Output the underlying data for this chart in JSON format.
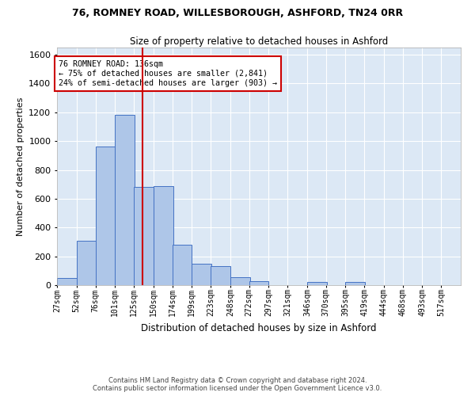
{
  "title_line1": "76, ROMNEY ROAD, WILLESBOROUGH, ASHFORD, TN24 0RR",
  "title_line2": "Size of property relative to detached houses in Ashford",
  "xlabel": "Distribution of detached houses by size in Ashford",
  "ylabel": "Number of detached properties",
  "footer_line1": "Contains HM Land Registry data © Crown copyright and database right 2024.",
  "footer_line2": "Contains public sector information licensed under the Open Government Licence v3.0.",
  "annotation_line1": "76 ROMNEY ROAD: 136sqm",
  "annotation_line2": "← 75% of detached houses are smaller (2,841)",
  "annotation_line3": "24% of semi-detached houses are larger (903) →",
  "bin_labels": [
    "27sqm",
    "52sqm",
    "76sqm",
    "101sqm",
    "125sqm",
    "150sqm",
    "174sqm",
    "199sqm",
    "223sqm",
    "248sqm",
    "272sqm",
    "297sqm",
    "321sqm",
    "346sqm",
    "370sqm",
    "395sqm",
    "419sqm",
    "444sqm",
    "468sqm",
    "493sqm",
    "517sqm"
  ],
  "bin_edges": [
    27,
    52,
    76,
    101,
    125,
    150,
    174,
    199,
    223,
    248,
    272,
    297,
    321,
    346,
    370,
    395,
    419,
    444,
    468,
    493,
    517
  ],
  "bar_heights": [
    50,
    310,
    960,
    1180,
    680,
    690,
    280,
    150,
    130,
    55,
    30,
    0,
    0,
    20,
    0,
    20,
    0,
    0,
    0,
    0,
    0
  ],
  "bar_color": "#aec6e8",
  "bar_edge_color": "#4472c4",
  "vline_x": 136,
  "vline_color": "#cc0000",
  "ylim": [
    0,
    1650
  ],
  "yticks": [
    0,
    200,
    400,
    600,
    800,
    1000,
    1200,
    1400,
    1600
  ],
  "bg_color": "#dce8f5",
  "annotation_box_color": "#cc0000",
  "grid_color": "#ffffff"
}
